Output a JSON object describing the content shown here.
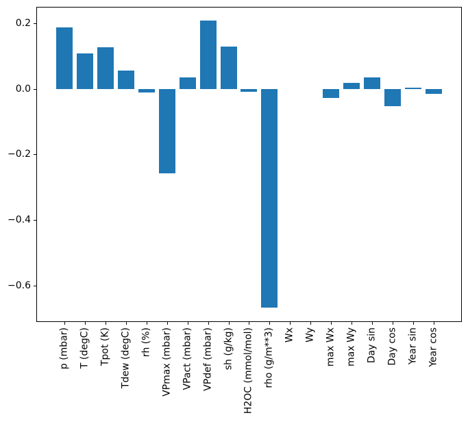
{
  "chart_data": {
    "type": "bar",
    "title": "",
    "xlabel": "",
    "ylabel": "",
    "categories": [
      "p (mbar)",
      "T (degC)",
      "Tpot (K)",
      "Tdew (degC)",
      "rh (%)",
      "VPmax (mbar)",
      "VPact (mbar)",
      "VPdef (mbar)",
      "sh (g/kg)",
      "H2OC (mmol/mol)",
      "rho (g/m**3)",
      "Wx",
      "Wy",
      "max Wx",
      "max Wy",
      "Day sin",
      "Day cos",
      "Year sin",
      "Year cos"
    ],
    "values": [
      0.188,
      0.108,
      0.128,
      0.056,
      -0.011,
      -0.257,
      0.035,
      0.209,
      0.129,
      -0.009,
      -0.668,
      0.0,
      0.0,
      -0.028,
      0.019,
      0.036,
      -0.052,
      0.004,
      -0.015
    ],
    "yticks": [
      0.2,
      0.0,
      -0.2,
      -0.4,
      -0.6
    ],
    "ytick_labels": [
      "0.2",
      "0.0",
      "−0.2",
      "−0.4",
      "−0.6"
    ],
    "ylim": [
      -0.712,
      0.251
    ],
    "xtick_rotation_deg": 90,
    "grid": false,
    "legend": null,
    "bar_color": "#1f77b4",
    "spine_color": "#000000",
    "background_color": "#ffffff"
  }
}
